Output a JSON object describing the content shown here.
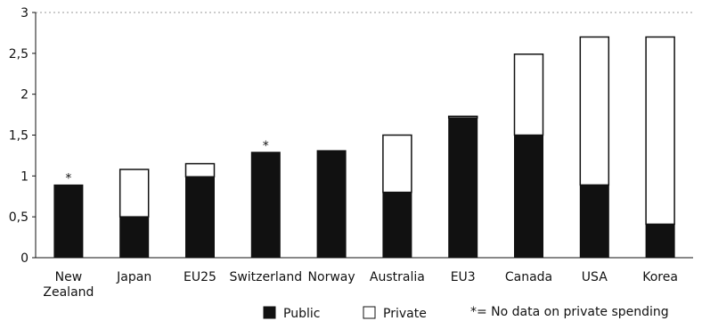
{
  "chart_data": {
    "type": "bar",
    "stacked": true,
    "categories": [
      "New Zealand",
      "Japan",
      "EU25",
      "Switzerland",
      "Norway",
      "Australia",
      "EU3",
      "Canada",
      "USA",
      "Korea"
    ],
    "category_lines": [
      [
        "New",
        "Zealand"
      ],
      [
        "Japan"
      ],
      [
        "EU25"
      ],
      [
        "Switzerland"
      ],
      [
        "Norway"
      ],
      [
        "Australia"
      ],
      [
        "EU3"
      ],
      [
        "Canada"
      ],
      [
        "USA"
      ],
      [
        "Korea"
      ]
    ],
    "series": [
      {
        "name": "Public",
        "values": [
          0.89,
          0.5,
          0.99,
          1.29,
          1.31,
          0.8,
          1.71,
          1.5,
          0.89,
          0.41
        ],
        "color": "#111111"
      },
      {
        "name": "Private",
        "values": [
          0,
          0.58,
          0.16,
          0,
          0,
          0.7,
          0.02,
          0.99,
          1.81,
          2.29
        ],
        "color": "#ffffff"
      }
    ],
    "no_private_data": [
      "New Zealand",
      "Switzerland"
    ],
    "asterisk": "*",
    "note": "*= No data on private spending",
    "ylim": [
      0,
      3
    ],
    "yticks": [
      "0",
      "0,5",
      "1",
      "1,5",
      "2",
      "2,5",
      "3"
    ],
    "ytick_values": [
      0,
      0.5,
      1,
      1.5,
      2,
      2.5,
      3
    ],
    "grid": false,
    "legend_position": "bottom",
    "xlabel": "",
    "ylabel": ""
  }
}
